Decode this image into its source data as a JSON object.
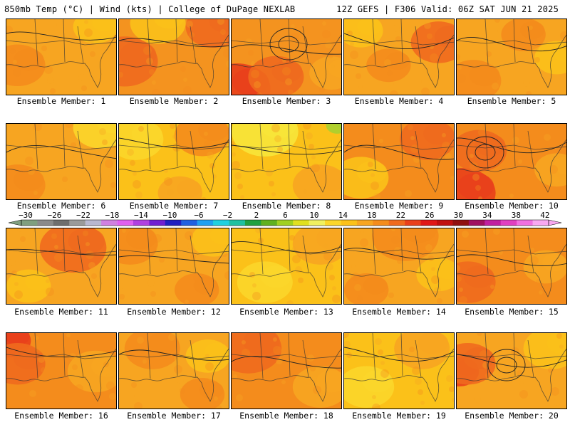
{
  "header": {
    "left": "850mb Temp (°C) | Wind (kts) | College of DuPage NEXLAB",
    "right": "12Z GEFS | F306 Valid: 06Z SAT JUN 21 2025"
  },
  "panels": [
    {
      "label": "Ensemble Member: 1",
      "base": "#f7a521",
      "warm": [
        [
          0.1,
          0.6,
          0.25,
          "#f48c1c"
        ]
      ],
      "cool": [
        [
          0.8,
          0.1,
          0.2,
          "#fbc119"
        ]
      ]
    },
    {
      "label": "Ensemble Member: 2",
      "base": "#f4931f",
      "warm": [
        [
          0.05,
          0.55,
          0.3,
          "#ef6a1e"
        ],
        [
          0.85,
          0.1,
          0.25,
          "#ef6a1e"
        ]
      ],
      "cool": [
        [
          0.35,
          0.05,
          0.25,
          "#fbc119"
        ]
      ]
    },
    {
      "label": "Ensemble Member: 3",
      "base": "#f4931f",
      "warm": [
        [
          0.05,
          0.9,
          0.3,
          "#e9401b"
        ],
        [
          0.4,
          0.75,
          0.25,
          "#ef6a1e"
        ]
      ],
      "cool": [
        [
          0.9,
          0.7,
          0.2,
          "#f7a521"
        ]
      ]
    },
    {
      "label": "Ensemble Member: 4",
      "base": "#f7a521",
      "warm": [
        [
          0.85,
          0.3,
          0.25,
          "#ef6a1e"
        ],
        [
          0.4,
          0.6,
          0.2,
          "#f48c1c"
        ]
      ],
      "cool": [
        [
          0.15,
          0.15,
          0.2,
          "#fbc119"
        ]
      ]
    },
    {
      "label": "Ensemble Member: 5",
      "base": "#f7a521",
      "warm": [
        [
          0.15,
          0.8,
          0.25,
          "#f48c1c"
        ],
        [
          0.6,
          0.2,
          0.2,
          "#f48c1c"
        ]
      ],
      "cool": [
        [
          0.9,
          0.5,
          0.2,
          "#fbc119"
        ]
      ]
    },
    {
      "label": "Ensemble Member: 6",
      "base": "#f7a521",
      "warm": [
        [
          0.1,
          0.8,
          0.25,
          "#f48c1c"
        ]
      ],
      "cool": [
        [
          0.85,
          0.05,
          0.25,
          "#fbd62a"
        ]
      ]
    },
    {
      "label": "Ensemble Member: 7",
      "base": "#fbc119",
      "warm": [
        [
          0.75,
          0.15,
          0.25,
          "#f48c1c"
        ],
        [
          0.55,
          0.9,
          0.2,
          "#f7a521"
        ]
      ],
      "cool": [
        [
          0.15,
          0.2,
          0.25,
          "#fbd62a"
        ]
      ]
    },
    {
      "label": "Ensemble Member: 8",
      "base": "#fbc119",
      "warm": [
        [
          0.8,
          0.8,
          0.25,
          "#f7a521"
        ]
      ],
      "cool": [
        [
          0.3,
          0.1,
          0.3,
          "#f7e63a"
        ],
        [
          0.95,
          0.02,
          0.1,
          "#a8d030"
        ]
      ]
    },
    {
      "label": "Ensemble Member: 9",
      "base": "#f48c1c",
      "warm": [
        [
          0.75,
          0.2,
          0.25,
          "#ef6a1e"
        ]
      ],
      "cool": [
        [
          0.15,
          0.7,
          0.25,
          "#fbc119"
        ]
      ]
    },
    {
      "label": "Ensemble Member: 10",
      "base": "#f48c1c",
      "warm": [
        [
          0.05,
          0.9,
          0.3,
          "#e9401b"
        ],
        [
          0.2,
          0.35,
          0.25,
          "#ef6a1e"
        ]
      ],
      "cool": [
        [
          0.9,
          0.6,
          0.2,
          "#f7a521"
        ]
      ]
    },
    {
      "label": "Ensemble Member: 11",
      "base": "#f7a521",
      "warm": [
        [
          0.6,
          0.25,
          0.3,
          "#ef6a1e"
        ]
      ],
      "cool": [
        [
          0.2,
          0.75,
          0.2,
          "#fbc119"
        ]
      ]
    },
    {
      "label": "Ensemble Member: 12",
      "base": "#f7a521",
      "warm": [
        [
          0.1,
          0.2,
          0.25,
          "#f48c1c"
        ],
        [
          0.7,
          0.8,
          0.2,
          "#f48c1c"
        ]
      ],
      "cool": [
        [
          0.85,
          0.15,
          0.2,
          "#fbc119"
        ]
      ]
    },
    {
      "label": "Ensemble Member: 13",
      "base": "#fbc119",
      "warm": [
        [
          0.8,
          0.2,
          0.25,
          "#f7a521"
        ]
      ],
      "cool": [
        [
          0.3,
          0.7,
          0.25,
          "#fbd62a"
        ]
      ]
    },
    {
      "label": "Ensemble Member: 14",
      "base": "#f7a521",
      "warm": [
        [
          0.55,
          0.1,
          0.3,
          "#f48c1c"
        ],
        [
          0.2,
          0.8,
          0.2,
          "#f48c1c"
        ]
      ],
      "cool": [
        [
          0.85,
          0.6,
          0.2,
          "#fbc119"
        ]
      ]
    },
    {
      "label": "Ensemble Member: 15",
      "base": "#f48c1c",
      "warm": [
        [
          0.1,
          0.7,
          0.25,
          "#ef6a1e"
        ]
      ],
      "cool": [
        [
          0.8,
          0.5,
          0.2,
          "#f7a521"
        ]
      ]
    },
    {
      "label": "Ensemble Member: 16",
      "base": "#f48c1c",
      "warm": [
        [
          0.02,
          0.1,
          0.2,
          "#e9401b"
        ],
        [
          0.1,
          0.4,
          0.25,
          "#ef6a1e"
        ]
      ],
      "cool": [
        [
          0.8,
          0.5,
          0.25,
          "#f7a521"
        ]
      ]
    },
    {
      "label": "Ensemble Member: 17",
      "base": "#f7a521",
      "warm": [
        [
          0.3,
          0.2,
          0.25,
          "#f48c1c"
        ],
        [
          0.75,
          0.8,
          0.2,
          "#f48c1c"
        ]
      ],
      "cool": [
        [
          0.8,
          0.3,
          0.2,
          "#fbc119"
        ]
      ]
    },
    {
      "label": "Ensemble Member: 18",
      "base": "#f48c1c",
      "warm": [
        [
          0.15,
          0.2,
          0.3,
          "#ef6a1e"
        ]
      ],
      "cool": [
        [
          0.8,
          0.7,
          0.25,
          "#f7a521"
        ]
      ]
    },
    {
      "label": "Ensemble Member: 19",
      "base": "#fbc119",
      "warm": [
        [
          0.7,
          0.2,
          0.25,
          "#f7a521"
        ]
      ],
      "cool": [
        [
          0.2,
          0.7,
          0.25,
          "#fbd62a"
        ]
      ]
    },
    {
      "label": "Ensemble Member: 20",
      "base": "#f7a521",
      "warm": [
        [
          0.02,
          0.5,
          0.18,
          "#e9401b"
        ],
        [
          0.1,
          0.4,
          0.25,
          "#ef6a1e"
        ]
      ],
      "cool": [
        [
          0.85,
          0.2,
          0.25,
          "#fbc119"
        ]
      ]
    }
  ],
  "colorbar": {
    "tick_labels": [
      "−30",
      "−26",
      "−22",
      "−18",
      "−14",
      "−10",
      "−6",
      "−2",
      "2",
      "6",
      "10",
      "14",
      "18",
      "22",
      "26",
      "30",
      "34",
      "38",
      "42"
    ],
    "colors": [
      "#7f9f7f",
      "#8a8a8a",
      "#6e6e6e",
      "#9a9a9a",
      "#b8b8d0",
      "#d080e0",
      "#e060f0",
      "#b040e0",
      "#7020d0",
      "#2020c0",
      "#2060e0",
      "#20a0f0",
      "#20d0e0",
      "#20c0a0",
      "#20a040",
      "#60b020",
      "#a0d020",
      "#e0e020",
      "#f0f060",
      "#fbd62a",
      "#fbc119",
      "#f7a521",
      "#f48c1c",
      "#ef6a1e",
      "#e9401b",
      "#e01818",
      "#c01010",
      "#901010",
      "#a01060",
      "#c020a0",
      "#e040c0",
      "#f070e0",
      "#f8a8f0"
    ]
  }
}
